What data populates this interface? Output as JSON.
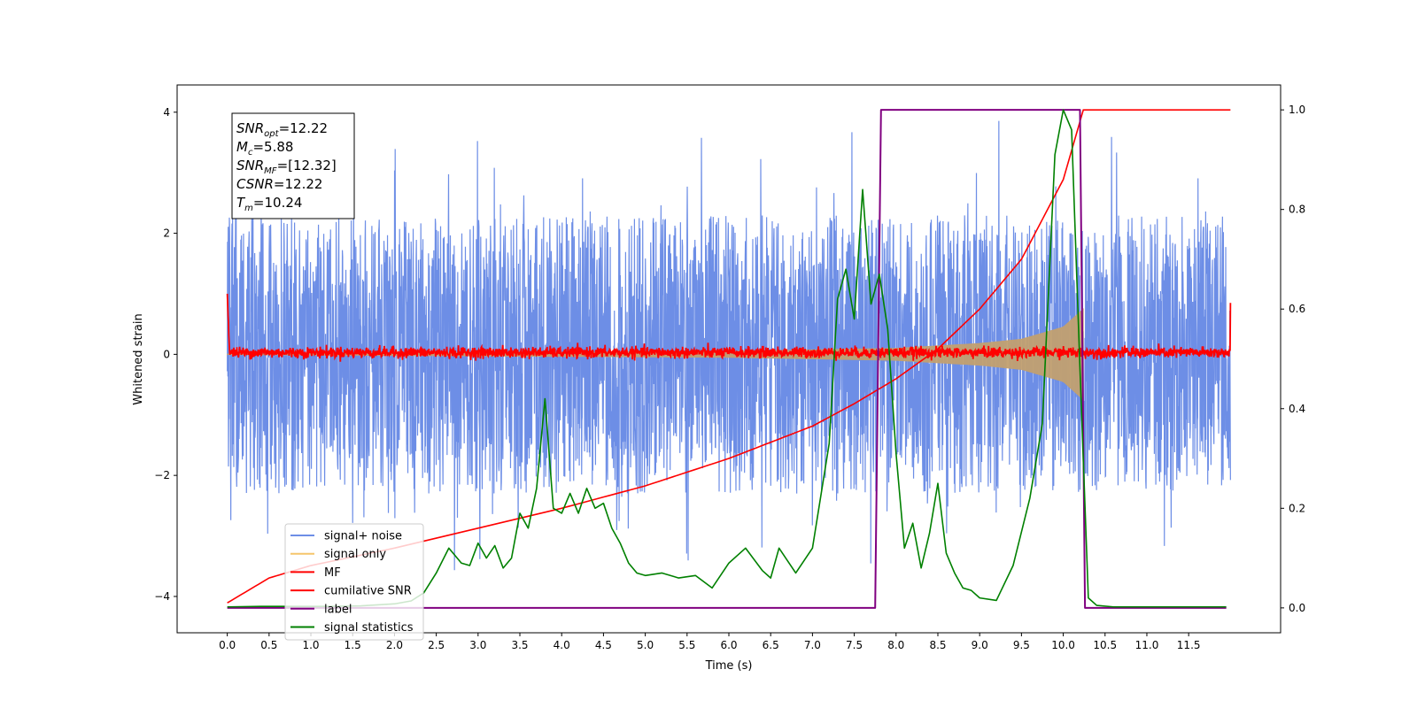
{
  "chart_data": {
    "type": "line",
    "xlabel": "Time (s)",
    "ylabel": "Whitened strain",
    "xlim": [
      -0.6,
      12.6
    ],
    "ylim_left": [
      -4.6,
      4.45
    ],
    "ylim_right": [
      -0.05,
      1.05
    ],
    "x_ticks": [
      0.0,
      0.5,
      1.0,
      1.5,
      2.0,
      2.5,
      3.0,
      3.5,
      4.0,
      4.5,
      5.0,
      5.5,
      6.0,
      6.5,
      7.0,
      7.5,
      8.0,
      8.5,
      9.0,
      9.5,
      10.0,
      10.5,
      11.0,
      11.5
    ],
    "x_tick_labels": [
      "0.0",
      "0.5",
      "1.0",
      "1.5",
      "2.0",
      "2.5",
      "3.0",
      "3.5",
      "4.0",
      "4.5",
      "5.0",
      "5.5",
      "6.0",
      "6.5",
      "7.0",
      "7.5",
      "8.0",
      "8.5",
      "9.0",
      "9.5",
      "10.0",
      "10.5",
      "11.0",
      "11.5"
    ],
    "y_left_ticks": [
      -4,
      -2,
      0,
      2,
      4
    ],
    "y_left_tick_labels": [
      "−4",
      "−2",
      "0",
      "2",
      "4"
    ],
    "y_right_ticks": [
      0.0,
      0.2,
      0.4,
      0.6,
      0.8,
      1.0
    ],
    "y_right_tick_labels": [
      "0.0",
      "0.2",
      "0.4",
      "0.6",
      "0.8",
      "1.0"
    ],
    "grid": false,
    "legend_position": "lower-left",
    "annotation": {
      "lines": [
        {
          "sym": "SNR",
          "sub": "opt",
          "val": "=12.22"
        },
        {
          "sym": "M",
          "sub": "c",
          "val": "=5.88"
        },
        {
          "sym": "SNR",
          "sub": "MF",
          "val": "=[12.32]"
        },
        {
          "sym": "CSNR",
          "sub": "",
          "val": "=12.22"
        },
        {
          "sym": "T",
          "sub": "m",
          "val": "=10.24"
        }
      ]
    },
    "series": [
      {
        "name": "signal+ noise",
        "axis": "left",
        "color": "#6d8ee6",
        "style": "noise band",
        "t_range": [
          0.0,
          12.0
        ],
        "typical_envelope": [
          -2.1,
          2.2
        ],
        "extreme_range": [
          -4.15,
          4.05
        ]
      },
      {
        "name": "signal only",
        "axis": "left",
        "color": "#f5c56b",
        "style": "chirp",
        "envelope": [
          [
            0.0,
            0.005
          ],
          [
            6.0,
            0.05
          ],
          [
            8.0,
            0.1
          ],
          [
            9.0,
            0.18
          ],
          [
            9.5,
            0.25
          ],
          [
            10.0,
            0.45
          ],
          [
            10.24,
            0.75
          ],
          [
            10.25,
            0.0
          ]
        ]
      },
      {
        "name": "MF",
        "axis": "left",
        "color": "#ff0000",
        "style": "noise band",
        "t_range": [
          0.0,
          12.0
        ],
        "level": 0.03,
        "amplitude": 0.1,
        "start_value": 1.0,
        "end_value": 0.85
      },
      {
        "name": "cumilative SNR",
        "axis": "right",
        "color": "#ff0000",
        "x": [
          0.0,
          0.5,
          1.0,
          2.0,
          3.0,
          4.0,
          5.0,
          6.0,
          7.0,
          7.5,
          8.0,
          8.5,
          9.0,
          9.5,
          10.0,
          10.24,
          10.25,
          12.0
        ],
        "y": [
          0.01,
          0.06,
          0.085,
          0.12,
          0.16,
          0.2,
          0.245,
          0.3,
          0.365,
          0.41,
          0.46,
          0.52,
          0.6,
          0.7,
          0.86,
          1.0,
          1.0,
          1.0
        ]
      },
      {
        "name": "label",
        "axis": "right",
        "color": "#800080",
        "x": [
          0.0,
          7.75,
          7.82,
          10.2,
          10.26,
          11.95
        ],
        "y": [
          0.0,
          0.0,
          1.0,
          1.0,
          0.0,
          0.0
        ]
      },
      {
        "name": "signal statistics",
        "axis": "right",
        "color": "#008000",
        "x": [
          0.0,
          0.4,
          0.8,
          1.2,
          1.6,
          2.0,
          2.2,
          2.35,
          2.5,
          2.65,
          2.8,
          2.9,
          3.0,
          3.1,
          3.2,
          3.3,
          3.4,
          3.5,
          3.6,
          3.7,
          3.8,
          3.9,
          4.0,
          4.1,
          4.2,
          4.3,
          4.4,
          4.5,
          4.6,
          4.7,
          4.8,
          4.9,
          5.0,
          5.2,
          5.4,
          5.6,
          5.8,
          6.0,
          6.2,
          6.4,
          6.5,
          6.6,
          6.8,
          7.0,
          7.2,
          7.3,
          7.4,
          7.5,
          7.6,
          7.7,
          7.8,
          7.9,
          8.0,
          8.1,
          8.2,
          8.3,
          8.4,
          8.5,
          8.6,
          8.7,
          8.8,
          8.9,
          9.0,
          9.2,
          9.4,
          9.6,
          9.75,
          9.9,
          10.0,
          10.1,
          10.2,
          10.3,
          10.4,
          10.6,
          11.0,
          11.5,
          11.95
        ],
        "y": [
          0.002,
          0.003,
          0.003,
          0.003,
          0.004,
          0.008,
          0.014,
          0.03,
          0.07,
          0.12,
          0.09,
          0.085,
          0.13,
          0.1,
          0.125,
          0.08,
          0.1,
          0.19,
          0.16,
          0.24,
          0.42,
          0.2,
          0.19,
          0.23,
          0.19,
          0.24,
          0.2,
          0.21,
          0.16,
          0.13,
          0.09,
          0.07,
          0.065,
          0.07,
          0.06,
          0.065,
          0.04,
          0.09,
          0.12,
          0.075,
          0.06,
          0.12,
          0.07,
          0.12,
          0.33,
          0.62,
          0.68,
          0.58,
          0.84,
          0.61,
          0.67,
          0.56,
          0.31,
          0.12,
          0.17,
          0.08,
          0.15,
          0.25,
          0.11,
          0.07,
          0.04,
          0.035,
          0.02,
          0.015,
          0.085,
          0.22,
          0.37,
          0.91,
          1.0,
          0.96,
          0.48,
          0.02,
          0.005,
          0.002,
          0.002,
          0.002,
          0.002
        ]
      }
    ]
  }
}
